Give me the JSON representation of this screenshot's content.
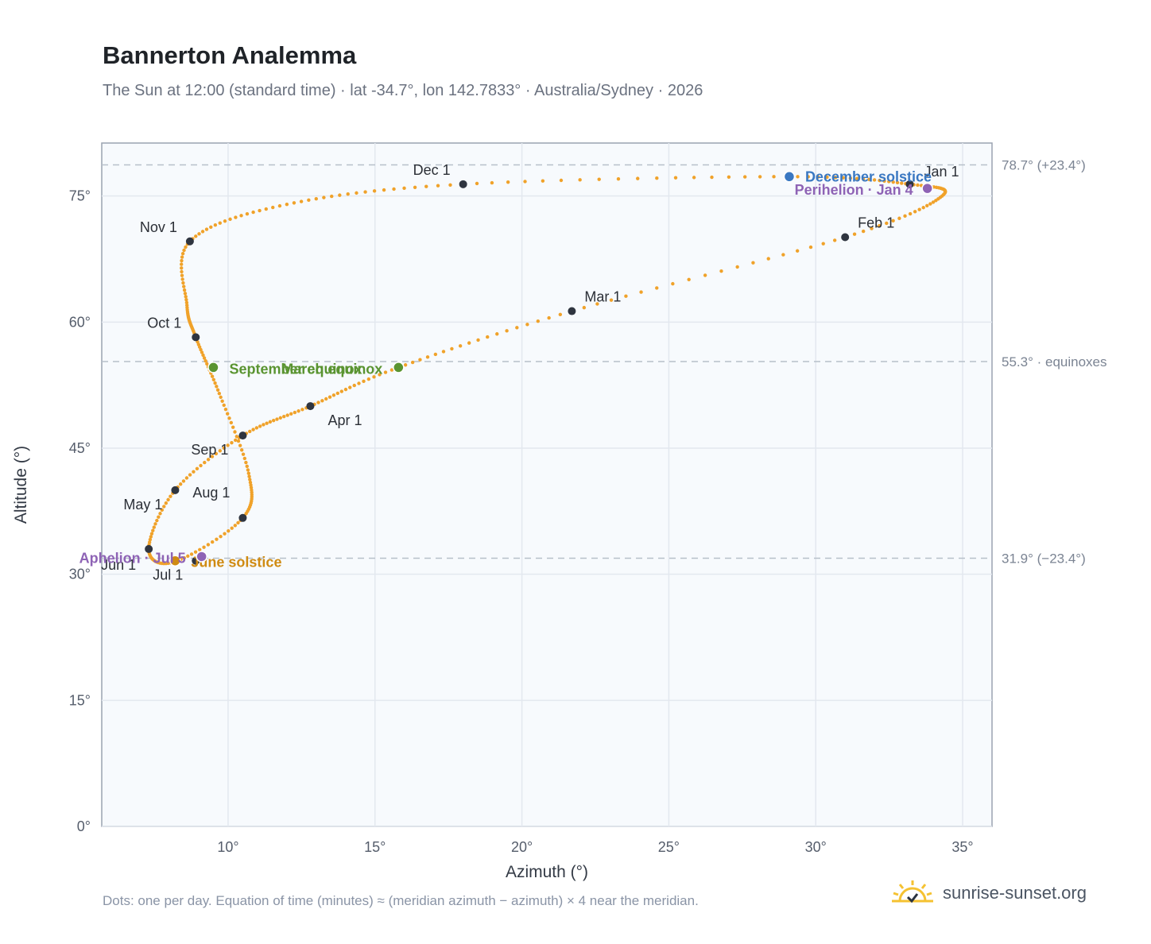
{
  "header": {
    "title": "Bannerton Analemma",
    "subtitle": "The Sun at 12:00 (standard time) · lat -34.7°, lon 142.7833° · Australia/Sydney · 2026"
  },
  "footer": {
    "note": "Dots: one per day. Equation of time (minutes) ≈ (meridian azimuth − azimuth) × 4 near the meridian.",
    "brand": "sunrise-sunset.org",
    "brand_icon": "sun-logo-icon"
  },
  "colors": {
    "path": "#f0a22a",
    "month_marker": "#2f3540",
    "solstice_december": "#3a78c2",
    "solstice_june": "#d08b12",
    "equinox": "#5a9431",
    "apsis": "#8e63b5",
    "plot_bg": "#f7fafd",
    "grid": "#e3e8ef",
    "reference_line": "#b7bfca"
  },
  "chart_data": {
    "type": "scatter",
    "title": "Bannerton Analemma",
    "subtitle": "The Sun at 12:00 (standard time) · lat -34.7°, lon 142.7833° · Australia/Sydney · 2026",
    "xlabel": "Azimuth (°)",
    "ylabel": "Altitude (°)",
    "xlim": [
      5.7,
      36
    ],
    "ylim": [
      0,
      81.3
    ],
    "x_ticks": [
      10,
      15,
      20,
      25,
      30,
      35
    ],
    "x_tick_labels": [
      "10°",
      "15°",
      "20°",
      "25°",
      "30°",
      "35°"
    ],
    "y_ticks": [
      0,
      15,
      30,
      45,
      60,
      75
    ],
    "y_tick_labels": [
      "0°",
      "15°",
      "30°",
      "45°",
      "60°",
      "75°"
    ],
    "grid": true,
    "path_anchors": [
      {
        "x": 33.2,
        "y": 76.4
      },
      {
        "x": 34.3,
        "y": 75.0
      },
      {
        "x": 31.0,
        "y": 70.1
      },
      {
        "x": 21.7,
        "y": 61.3
      },
      {
        "x": 15.8,
        "y": 54.6
      },
      {
        "x": 12.8,
        "y": 50.0
      },
      {
        "x": 10.5,
        "y": 46.5
      },
      {
        "x": 8.2,
        "y": 40.0
      },
      {
        "x": 7.3,
        "y": 33.0
      },
      {
        "x": 8.2,
        "y": 31.5
      },
      {
        "x": 10.5,
        "y": 36.7
      },
      {
        "x": 10.7,
        "y": 42.0
      },
      {
        "x": 9.7,
        "y": 51.5
      },
      {
        "x": 8.9,
        "y": 58.2
      },
      {
        "x": 8.6,
        "y": 62.0
      },
      {
        "x": 8.7,
        "y": 69.6
      },
      {
        "x": 12.0,
        "y": 74.0
      },
      {
        "x": 18.0,
        "y": 76.4
      },
      {
        "x": 29.0,
        "y": 77.3
      },
      {
        "x": 33.2,
        "y": 76.4
      }
    ],
    "month_markers": [
      {
        "label": "Jan 1",
        "x": 33.2,
        "y": 76.4
      },
      {
        "label": "Feb 1",
        "x": 31.0,
        "y": 70.1
      },
      {
        "label": "Mar 1",
        "x": 21.7,
        "y": 61.3
      },
      {
        "label": "Apr 1",
        "x": 12.8,
        "y": 50.0
      },
      {
        "label": "May 1",
        "x": 8.2,
        "y": 40.0
      },
      {
        "label": "Jun 1",
        "x": 7.3,
        "y": 33.0
      },
      {
        "label": "Jul 1",
        "x": 8.9,
        "y": 31.6
      },
      {
        "label": "Aug 1",
        "x": 10.5,
        "y": 36.7
      },
      {
        "label": "Sep 1",
        "x": 10.5,
        "y": 46.5
      },
      {
        "label": "Oct 1",
        "x": 8.9,
        "y": 58.2
      },
      {
        "label": "Nov 1",
        "x": 8.7,
        "y": 69.6
      },
      {
        "label": "Dec 1",
        "x": 18.0,
        "y": 76.4
      }
    ],
    "events": [
      {
        "label": "December solstice",
        "x": 29.1,
        "y": 77.3,
        "color_key": "solstice_december"
      },
      {
        "label": "Perihelion · Jan 4",
        "x": 33.8,
        "y": 75.9,
        "color_key": "apsis"
      },
      {
        "label": "March equinox",
        "x": 15.8,
        "y": 54.6,
        "color_key": "equinox"
      },
      {
        "label": "September equinox",
        "x": 9.5,
        "y": 54.6,
        "color_key": "equinox"
      },
      {
        "label": "June solstice",
        "x": 8.2,
        "y": 31.6,
        "color_key": "solstice_june"
      },
      {
        "label": "Aphelion · Jul 5",
        "x": 9.1,
        "y": 32.1,
        "color_key": "apsis"
      }
    ],
    "reference_lines": [
      {
        "y": 78.7,
        "label": "78.7° (+23.4°)"
      },
      {
        "y": 55.3,
        "label": "55.3° · equinoxes"
      },
      {
        "y": 31.9,
        "label": "31.9° (−23.4°)"
      }
    ]
  }
}
